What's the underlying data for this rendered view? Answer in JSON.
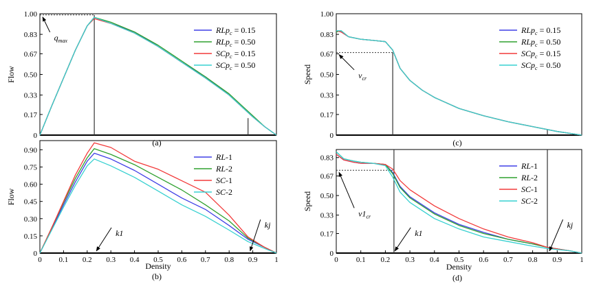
{
  "colors": {
    "blue": "#3e3ee6",
    "green": "#2ea02e",
    "red": "#f23a3a",
    "cyan": "#36d0d0",
    "axis": "#000000",
    "guide": "#333333"
  },
  "chart_data": [
    {
      "id": "a",
      "type": "line",
      "caption": "(a)",
      "xlabel": "",
      "ylabel": "Flow",
      "xlim": [
        0,
        1
      ],
      "ylim": [
        0,
        1
      ],
      "yticks": [
        "0",
        "0.17",
        "0.33",
        "0.50",
        "0.67",
        "0.83",
        "1.00"
      ],
      "ytick_values": [
        0,
        0.17,
        0.33,
        0.5,
        0.67,
        0.83,
        1.0
      ],
      "xticks": [],
      "xtick_values": [],
      "legend": [
        {
          "text": "RLpc = 0.15",
          "italic": "RLp",
          "sub": "c",
          "rest": " = 0.15",
          "color": "blue"
        },
        {
          "text": "RLpc = 0.50",
          "italic": "RLp",
          "sub": "c",
          "rest": " = 0.50",
          "color": "green"
        },
        {
          "text": "SCpc = 0.15",
          "italic": "SCp",
          "sub": "c",
          "rest": " = 0.15",
          "color": "red"
        },
        {
          "text": "SCpc = 0.50",
          "italic": "SCp",
          "sub": "c",
          "rest": " = 0.50",
          "color": "cyan"
        }
      ],
      "legend_position": "upper-right",
      "series": [
        {
          "name": "RLpc = 0.15",
          "color": "blue",
          "x": [
            0,
            0.05,
            0.1,
            0.15,
            0.2,
            0.23,
            0.3,
            0.4,
            0.5,
            0.6,
            0.7,
            0.8,
            0.85,
            0.9,
            0.95,
            1.0
          ],
          "y": [
            0,
            0.24,
            0.47,
            0.7,
            0.9,
            0.97,
            0.92,
            0.85,
            0.73,
            0.6,
            0.48,
            0.33,
            0.24,
            0.15,
            0.07,
            0
          ]
        },
        {
          "name": "RLpc = 0.50",
          "color": "green",
          "x": [
            0,
            0.05,
            0.1,
            0.15,
            0.2,
            0.23,
            0.3,
            0.4,
            0.5,
            0.6,
            0.7,
            0.8,
            0.85,
            0.9,
            0.95,
            1.0
          ],
          "y": [
            0,
            0.24,
            0.47,
            0.7,
            0.9,
            0.97,
            0.93,
            0.85,
            0.74,
            0.61,
            0.48,
            0.34,
            0.25,
            0.16,
            0.07,
            0
          ]
        },
        {
          "name": "SCpc = 0.15",
          "color": "red",
          "x": [
            0,
            0.05,
            0.1,
            0.15,
            0.2,
            0.23,
            0.3,
            0.4,
            0.5,
            0.6,
            0.7,
            0.8,
            0.85,
            0.9,
            0.95,
            1.0
          ],
          "y": [
            0,
            0.24,
            0.47,
            0.7,
            0.9,
            0.96,
            0.92,
            0.84,
            0.73,
            0.6,
            0.47,
            0.33,
            0.24,
            0.15,
            0.07,
            0
          ]
        },
        {
          "name": "SCpc = 0.50",
          "color": "cyan",
          "x": [
            0,
            0.05,
            0.1,
            0.15,
            0.2,
            0.23,
            0.3,
            0.4,
            0.5,
            0.6,
            0.7,
            0.8,
            0.85,
            0.9,
            0.95,
            1.0
          ],
          "y": [
            0,
            0.24,
            0.47,
            0.7,
            0.9,
            0.97,
            0.92,
            0.84,
            0.73,
            0.6,
            0.47,
            0.33,
            0.24,
            0.15,
            0.07,
            0
          ]
        }
      ],
      "annotations": [
        {
          "label": "q",
          "sub": "max",
          "target": [
            0,
            0.99
          ],
          "from_label": [
            0.06,
            0.78
          ]
        }
      ],
      "dashed": [
        {
          "from": [
            0,
            0.99
          ],
          "to": [
            0.23,
            0.99
          ]
        }
      ],
      "vlines": [
        {
          "x": 0.23,
          "y_top": 0.99
        },
        {
          "x": 0.88,
          "y_top": 0.14
        }
      ]
    },
    {
      "id": "b",
      "type": "line",
      "caption": "(b)",
      "xlabel": "Density",
      "ylabel": "Flow",
      "xlim": [
        0,
        1
      ],
      "ylim": [
        0,
        0.98
      ],
      "yticks": [
        "0",
        "0.15",
        "0.30",
        "0.45",
        "0.60",
        "0.75",
        "0.90"
      ],
      "ytick_values": [
        0,
        0.15,
        0.3,
        0.45,
        0.6,
        0.75,
        0.9
      ],
      "xticks": [
        "0",
        "0.1",
        "0.2",
        "0.3",
        "0.4",
        "0.5",
        "0.6",
        "0.7",
        "0.8",
        "0.9",
        "1"
      ],
      "xtick_values": [
        0,
        0.1,
        0.2,
        0.3,
        0.4,
        0.5,
        0.6,
        0.7,
        0.8,
        0.9,
        1.0
      ],
      "legend": [
        {
          "text": "RL-1",
          "italic": "RL",
          "sub": "",
          "rest": "-1",
          "color": "blue"
        },
        {
          "text": "RL-2",
          "italic": "RL",
          "sub": "",
          "rest": "-2",
          "color": "green"
        },
        {
          "text": "SC-1",
          "italic": "SC",
          "sub": "",
          "rest": "-1",
          "color": "red"
        },
        {
          "text": "SC-2",
          "italic": "SC",
          "sub": "",
          "rest": "-2",
          "color": "cyan"
        }
      ],
      "legend_position": "upper-right",
      "series": [
        {
          "name": "RL-1",
          "color": "blue",
          "x": [
            0,
            0.05,
            0.1,
            0.15,
            0.2,
            0.23,
            0.3,
            0.4,
            0.5,
            0.6,
            0.7,
            0.8,
            0.88,
            0.95,
            1.0
          ],
          "y": [
            0,
            0.21,
            0.42,
            0.62,
            0.8,
            0.87,
            0.82,
            0.72,
            0.6,
            0.48,
            0.38,
            0.24,
            0.12,
            0.05,
            0
          ]
        },
        {
          "name": "RL-2",
          "color": "green",
          "x": [
            0,
            0.05,
            0.1,
            0.15,
            0.2,
            0.23,
            0.3,
            0.4,
            0.5,
            0.6,
            0.7,
            0.8,
            0.88,
            0.95,
            1.0
          ],
          "y": [
            0,
            0.22,
            0.44,
            0.65,
            0.83,
            0.91,
            0.86,
            0.77,
            0.66,
            0.55,
            0.42,
            0.28,
            0.13,
            0.05,
            0
          ]
        },
        {
          "name": "SC-1",
          "color": "red",
          "x": [
            0,
            0.05,
            0.1,
            0.15,
            0.2,
            0.23,
            0.3,
            0.4,
            0.5,
            0.6,
            0.7,
            0.8,
            0.88,
            0.95,
            1.0
          ],
          "y": [
            0,
            0.22,
            0.45,
            0.68,
            0.87,
            0.96,
            0.92,
            0.8,
            0.73,
            0.63,
            0.53,
            0.33,
            0.14,
            0.05,
            0
          ]
        },
        {
          "name": "SC-2",
          "color": "cyan",
          "x": [
            0,
            0.05,
            0.1,
            0.15,
            0.2,
            0.23,
            0.3,
            0.4,
            0.5,
            0.6,
            0.7,
            0.8,
            0.88,
            0.95,
            1.0
          ],
          "y": [
            0,
            0.2,
            0.4,
            0.59,
            0.76,
            0.82,
            0.76,
            0.66,
            0.54,
            0.42,
            0.32,
            0.2,
            0.1,
            0.04,
            0
          ]
        }
      ],
      "annotations": [
        {
          "label": "k1",
          "sub": "",
          "target": [
            0.23,
            0
          ],
          "from_label": [
            0.32,
            0.15
          ]
        },
        {
          "label": "kj",
          "sub": "",
          "target": [
            0.88,
            0
          ],
          "from_label": [
            0.95,
            0.22
          ]
        }
      ],
      "dashed": [],
      "vlines": []
    },
    {
      "id": "c",
      "type": "line",
      "caption": "(c)",
      "xlabel": "",
      "ylabel": "Speed",
      "xlim": [
        0,
        1
      ],
      "ylim": [
        0,
        1
      ],
      "yticks": [
        "0",
        "0.17",
        "0.33",
        "0.50",
        "0.67",
        "0.83",
        "1.00"
      ],
      "ytick_values": [
        0,
        0.17,
        0.33,
        0.5,
        0.67,
        0.83,
        1.0
      ],
      "xticks": [],
      "xtick_values": [],
      "legend": [
        {
          "text": "RLpc = 0.15",
          "italic": "RLp",
          "sub": "c",
          "rest": " = 0.15",
          "color": "blue"
        },
        {
          "text": "RLpc = 0.50",
          "italic": "RLp",
          "sub": "c",
          "rest": " = 0.50",
          "color": "green"
        },
        {
          "text": "SCpc = 0.15",
          "italic": "SCp",
          "sub": "c",
          "rest": " = 0.15",
          "color": "red"
        },
        {
          "text": "SCpc = 0.50",
          "italic": "SCp",
          "sub": "c",
          "rest": " = 0.50",
          "color": "cyan"
        }
      ],
      "legend_position": "upper-right",
      "series": [
        {
          "name": "RLpc = 0.15",
          "color": "blue",
          "x": [
            0,
            0.02,
            0.05,
            0.1,
            0.15,
            0.2,
            0.23,
            0.26,
            0.3,
            0.35,
            0.4,
            0.5,
            0.6,
            0.7,
            0.8,
            0.9,
            1.0
          ],
          "y": [
            0.86,
            0.85,
            0.81,
            0.79,
            0.78,
            0.77,
            0.7,
            0.55,
            0.45,
            0.37,
            0.31,
            0.22,
            0.16,
            0.11,
            0.07,
            0.03,
            0
          ]
        },
        {
          "name": "RLpc = 0.50",
          "color": "green",
          "x": [
            0,
            0.02,
            0.05,
            0.1,
            0.15,
            0.2,
            0.23,
            0.26,
            0.3,
            0.35,
            0.4,
            0.5,
            0.6,
            0.7,
            0.8,
            0.9,
            1.0
          ],
          "y": [
            0.85,
            0.86,
            0.81,
            0.79,
            0.78,
            0.77,
            0.7,
            0.55,
            0.45,
            0.37,
            0.31,
            0.22,
            0.16,
            0.11,
            0.07,
            0.03,
            0
          ]
        },
        {
          "name": "SCpc = 0.15",
          "color": "red",
          "x": [
            0,
            0.02,
            0.05,
            0.1,
            0.15,
            0.2,
            0.23,
            0.26,
            0.3,
            0.35,
            0.4,
            0.5,
            0.6,
            0.7,
            0.8,
            0.9,
            1.0
          ],
          "y": [
            0.86,
            0.85,
            0.81,
            0.79,
            0.78,
            0.77,
            0.7,
            0.55,
            0.45,
            0.37,
            0.31,
            0.22,
            0.16,
            0.11,
            0.07,
            0.03,
            0
          ]
        },
        {
          "name": "SCpc = 0.50",
          "color": "cyan",
          "x": [
            0,
            0.02,
            0.05,
            0.1,
            0.15,
            0.2,
            0.23,
            0.26,
            0.3,
            0.35,
            0.4,
            0.5,
            0.6,
            0.7,
            0.8,
            0.9,
            1.0
          ],
          "y": [
            0.86,
            0.86,
            0.81,
            0.79,
            0.78,
            0.77,
            0.7,
            0.55,
            0.45,
            0.37,
            0.31,
            0.22,
            0.16,
            0.11,
            0.07,
            0.03,
            0
          ]
        }
      ],
      "annotations": [
        {
          "label": "v",
          "sub": "cr",
          "target": [
            0,
            0.68
          ],
          "from_label": [
            0.09,
            0.47
          ]
        }
      ],
      "dashed": [
        {
          "from": [
            0,
            0.68
          ],
          "to": [
            0.23,
            0.68
          ]
        }
      ],
      "vlines": [
        {
          "x": 0.23,
          "y_top": 0.68
        },
        {
          "x": 0.86,
          "y_top": 0.05
        }
      ]
    },
    {
      "id": "d",
      "type": "line",
      "caption": "(d)",
      "xlabel": "Density",
      "ylabel": "Speed",
      "xlim": [
        0,
        1
      ],
      "ylim": [
        0,
        0.9
      ],
      "yticks": [
        "0",
        "0.17",
        "0.33",
        "0.50",
        "0.67",
        "0.83"
      ],
      "ytick_values": [
        0,
        0.17,
        0.33,
        0.5,
        0.67,
        0.83
      ],
      "xticks": [
        "0",
        "0.1",
        "0.2",
        "0.3",
        "0.4",
        "0.5",
        "0.6",
        "0.7",
        "0.8",
        "0.9",
        "1"
      ],
      "xtick_values": [
        0,
        0.1,
        0.2,
        0.3,
        0.4,
        0.5,
        0.6,
        0.7,
        0.8,
        0.9,
        1.0
      ],
      "legend": [
        {
          "text": "RL-1",
          "italic": "RL",
          "sub": "",
          "rest": "-1",
          "color": "blue"
        },
        {
          "text": "RL-2",
          "italic": "RL",
          "sub": "",
          "rest": "-2",
          "color": "green"
        },
        {
          "text": "SC-1",
          "italic": "SC",
          "sub": "",
          "rest": "-1",
          "color": "red"
        },
        {
          "text": "SC-2",
          "italic": "SC",
          "sub": "",
          "rest": "-2",
          "color": "cyan"
        }
      ],
      "legend_position": "upper-right",
      "series": [
        {
          "name": "RL-1",
          "color": "blue",
          "x": [
            0,
            0.03,
            0.07,
            0.1,
            0.15,
            0.2,
            0.23,
            0.26,
            0.3,
            0.4,
            0.5,
            0.6,
            0.7,
            0.8,
            0.86,
            0.95,
            1.0
          ],
          "y": [
            0.86,
            0.81,
            0.79,
            0.78,
            0.78,
            0.77,
            0.7,
            0.58,
            0.49,
            0.35,
            0.25,
            0.18,
            0.12,
            0.08,
            0.05,
            0.02,
            0
          ]
        },
        {
          "name": "RL-2",
          "color": "green",
          "x": [
            0,
            0.03,
            0.07,
            0.1,
            0.15,
            0.2,
            0.23,
            0.26,
            0.3,
            0.4,
            0.5,
            0.6,
            0.7,
            0.8,
            0.86,
            0.95,
            1.0
          ],
          "y": [
            0.88,
            0.82,
            0.8,
            0.79,
            0.78,
            0.77,
            0.69,
            0.57,
            0.48,
            0.34,
            0.24,
            0.17,
            0.12,
            0.08,
            0.05,
            0.02,
            0
          ]
        },
        {
          "name": "SC-1",
          "color": "red",
          "x": [
            0,
            0.03,
            0.07,
            0.1,
            0.15,
            0.2,
            0.23,
            0.26,
            0.3,
            0.4,
            0.5,
            0.6,
            0.7,
            0.8,
            0.86,
            0.95,
            1.0
          ],
          "y": [
            0.86,
            0.81,
            0.79,
            0.78,
            0.78,
            0.77,
            0.73,
            0.63,
            0.55,
            0.41,
            0.3,
            0.21,
            0.14,
            0.09,
            0.05,
            0.02,
            0
          ]
        },
        {
          "name": "SC-2",
          "color": "cyan",
          "x": [
            0,
            0.03,
            0.07,
            0.1,
            0.15,
            0.2,
            0.23,
            0.26,
            0.3,
            0.4,
            0.5,
            0.6,
            0.7,
            0.8,
            0.86,
            0.95,
            1.0
          ],
          "y": [
            0.88,
            0.82,
            0.8,
            0.79,
            0.78,
            0.76,
            0.66,
            0.53,
            0.44,
            0.3,
            0.21,
            0.14,
            0.1,
            0.06,
            0.04,
            0.02,
            0
          ]
        }
      ],
      "annotations": [
        {
          "label": "v1",
          "sub": "cr",
          "target": [
            0,
            0.72
          ],
          "from_label": [
            0.09,
            0.32
          ]
        },
        {
          "label": "k1",
          "sub": "",
          "target": [
            0.23,
            0
          ],
          "from_label": [
            0.32,
            0.15
          ]
        },
        {
          "label": "kj",
          "sub": "",
          "target": [
            0.86,
            0
          ],
          "from_label": [
            0.94,
            0.22
          ]
        }
      ],
      "dashed": [
        {
          "from": [
            0,
            0.72
          ],
          "to": [
            0.23,
            0.72
          ]
        }
      ],
      "vlines": [
        {
          "x": 0.235,
          "y_top": 0.9
        },
        {
          "x": 0.86,
          "y_top": 0.9
        }
      ]
    }
  ]
}
